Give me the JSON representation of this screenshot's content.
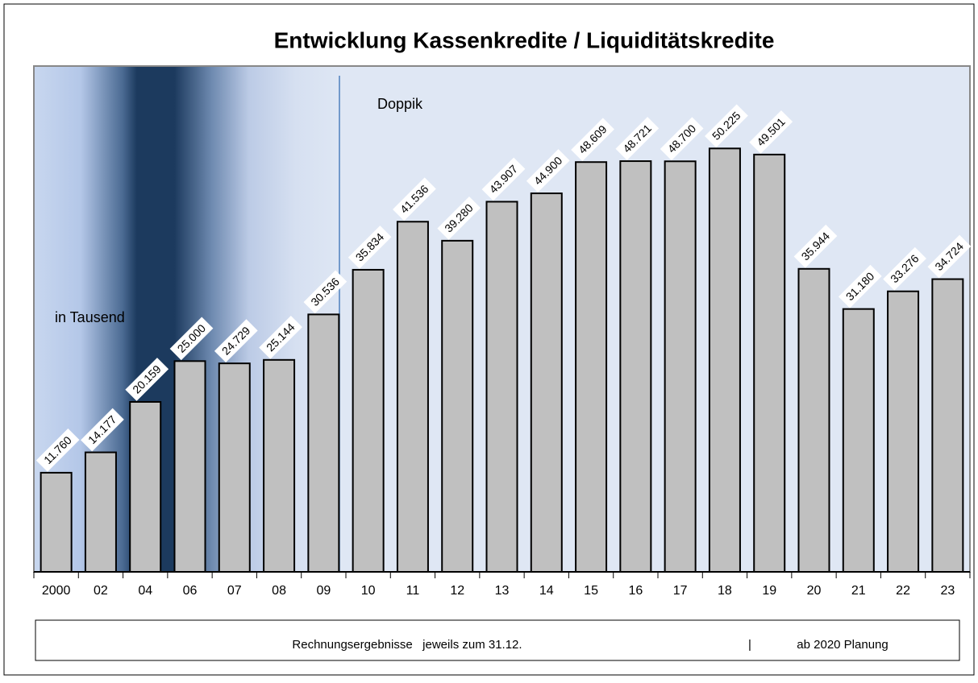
{
  "chart_data": {
    "type": "bar",
    "title": "Entwicklung Kassenkredite / Liquiditätskredite",
    "annotations": [
      "Doppik",
      "in Tausend"
    ],
    "footer": [
      "Rechnungsergebnisse   jeweils zum 31.12.",
      "|",
      "ab 2020 Planung"
    ],
    "categories": [
      "2000",
      "02",
      "04",
      "06",
      "07",
      "08",
      "09",
      "10",
      "11",
      "12",
      "13",
      "14",
      "15",
      "16",
      "17",
      "18",
      "19",
      "20",
      "21",
      "22",
      "23"
    ],
    "values": [
      11760,
      14177,
      20159,
      25000,
      24729,
      25144,
      30536,
      35834,
      41536,
      39280,
      43907,
      44900,
      48609,
      48721,
      48700,
      50225,
      49501,
      35944,
      31180,
      33276,
      34724
    ],
    "value_labels": [
      "11.760",
      "14.177",
      "20.159",
      "25.000",
      "24.729",
      "25.144",
      "30.536",
      "35.834",
      "41.536",
      "39.280",
      "43.907",
      "44.900",
      "48.609",
      "48.721",
      "48.700",
      "50.225",
      "49.501",
      "35.944",
      "31.180",
      "33.276",
      "34.724"
    ],
    "color": "#c0c0c0",
    "ylim": [
      0,
      60000
    ]
  }
}
